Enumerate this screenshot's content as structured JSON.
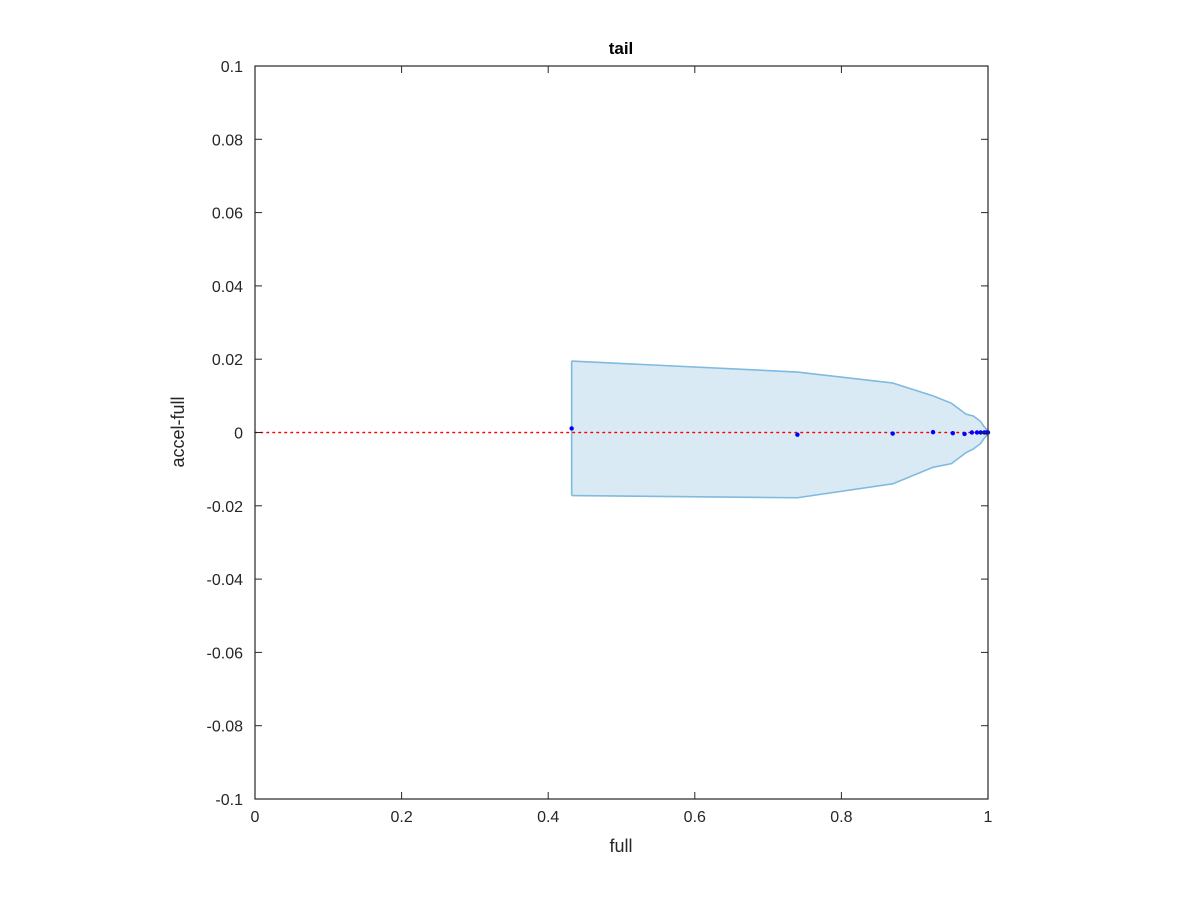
{
  "chart_data": {
    "type": "scatter",
    "title": "tail",
    "xlabel": "full",
    "ylabel": "accel-full",
    "xlim": [
      0,
      1
    ],
    "ylim": [
      -0.1,
      0.1
    ],
    "x_ticks": [
      0,
      0.2,
      0.4,
      0.6,
      0.8,
      1
    ],
    "x_tick_labels": [
      "0",
      "0.2",
      "0.4",
      "0.6",
      "0.8",
      "1"
    ],
    "y_ticks": [
      0.1,
      0.08,
      0.06,
      0.04,
      0.02,
      0,
      -0.02,
      -0.04,
      -0.06,
      -0.08,
      -0.1
    ],
    "y_tick_labels": [
      "0.1",
      "0.08",
      "0.06",
      "0.04",
      "0.02",
      "0",
      "-0.02",
      "-0.04",
      "-0.06",
      "-0.08",
      "-0.1"
    ],
    "grid": false,
    "legend": "none",
    "reference_line": {
      "y": 0,
      "style": "dotted",
      "color": "#ff0000"
    },
    "band": {
      "color": "#0072bd",
      "fill_opacity": 0.15,
      "points": [
        {
          "x": 0.432,
          "lower": -0.0172,
          "upper": 0.0195
        },
        {
          "x": 0.74,
          "lower": -0.0178,
          "upper": 0.0165
        },
        {
          "x": 0.87,
          "lower": -0.014,
          "upper": 0.0135
        },
        {
          "x": 0.925,
          "lower": -0.0095,
          "upper": 0.01
        },
        {
          "x": 0.95,
          "lower": -0.0085,
          "upper": 0.008
        },
        {
          "x": 0.97,
          "lower": -0.0055,
          "upper": 0.005
        },
        {
          "x": 0.98,
          "lower": -0.0045,
          "upper": 0.0045
        },
        {
          "x": 0.99,
          "lower": -0.003,
          "upper": 0.003
        },
        {
          "x": 0.995,
          "lower": -0.0015,
          "upper": 0.0015
        },
        {
          "x": 1.0,
          "lower": -0.0005,
          "upper": 0.0005
        }
      ]
    },
    "points_color": "#0000ff",
    "points": [
      {
        "x": 0.432,
        "y": 0.0011
      },
      {
        "x": 0.74,
        "y": -0.0006
      },
      {
        "x": 0.87,
        "y": -0.0003
      },
      {
        "x": 0.925,
        "y": 0.0001
      },
      {
        "x": 0.952,
        "y": -0.0002
      },
      {
        "x": 0.968,
        "y": -0.0004
      },
      {
        "x": 0.978,
        "y": 0.0
      },
      {
        "x": 0.985,
        "y": 0.0
      },
      {
        "x": 0.99,
        "y": 0.0
      },
      {
        "x": 0.995,
        "y": 0.0
      },
      {
        "x": 0.998,
        "y": 0.0
      },
      {
        "x": 1.0,
        "y": 0.0
      }
    ]
  }
}
